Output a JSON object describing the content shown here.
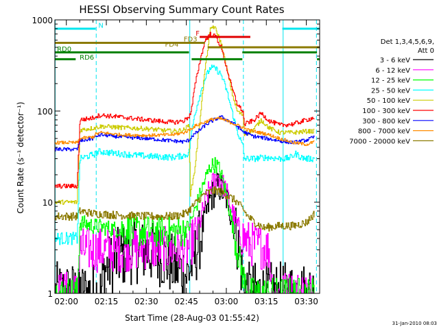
{
  "chart_data": {
    "type": "line",
    "title": "HESSI Observing Summary Count Rates",
    "xlabel": "Start Time (28-Aug-03 01:55:42)",
    "ylabel": "Count Rate (s⁻¹ detector⁻¹)",
    "ylog": true,
    "ylim": [
      1,
      1000
    ],
    "xlim": [
      115.7,
      215
    ],
    "xticks": [
      {
        "value": 120,
        "label": "02:00"
      },
      {
        "value": 135,
        "label": "02:15"
      },
      {
        "value": 150,
        "label": "02:30"
      },
      {
        "value": 165,
        "label": "02:45"
      },
      {
        "value": 180,
        "label": "03:00"
      },
      {
        "value": 195,
        "label": "03:15"
      },
      {
        "value": 210,
        "label": "03:30"
      }
    ],
    "yticks": [
      {
        "value": 1,
        "label": "1"
      },
      {
        "value": 10,
        "label": "10"
      },
      {
        "value": 100,
        "label": "100"
      },
      {
        "value": 1000,
        "label": "1000"
      }
    ],
    "legend": {
      "placement": "right",
      "header": [
        "Det 1,3,4,5,6,9,",
        "Att 0"
      ]
    },
    "flags": [
      {
        "name": "N",
        "color": "#00e5ee",
        "y": 800,
        "segments": [
          [
            115.7,
            131
          ],
          [
            201,
            215
          ]
        ],
        "label_x": 132,
        "label_y": 820
      },
      {
        "name": "F",
        "color": "#e00000",
        "y": 650,
        "segments": [
          [
            170,
            189
          ]
        ],
        "label_x": 168.5,
        "label_y": 670
      },
      {
        "name": "FD3",
        "color": "#8b7a00",
        "y": 560,
        "segments": [
          [
            115.7,
            172
          ]
        ],
        "label_x": 164,
        "label_y": 580
      },
      {
        "name": "FD4",
        "color": "#8b7a00",
        "y": 500,
        "segments": [
          [
            173,
            215
          ]
        ],
        "label_x": 157,
        "label_y": 510
      },
      {
        "name": "RD0",
        "color": "#008000",
        "y": 440,
        "segments": [
          [
            115.7,
            166
          ],
          [
            186,
            214
          ]
        ],
        "label_x": 116.5,
        "label_y": 450
      },
      {
        "name": "RD6",
        "color": "#008000",
        "y": 370,
        "segments": [
          [
            115.7,
            123.5
          ],
          [
            167,
            186
          ],
          [
            214,
            215
          ]
        ],
        "label_x": 125,
        "label_y": 365
      }
    ],
    "vlines": [
      {
        "x": 115.8,
        "style": "solid",
        "color": "#00e5ee"
      },
      {
        "x": 131.2,
        "style": "dashed",
        "color": "#00e5ee"
      },
      {
        "x": 166.3,
        "style": "solid",
        "color": "#00e5ee"
      },
      {
        "x": 186.4,
        "style": "dashed",
        "color": "#00e5ee"
      },
      {
        "x": 201.3,
        "style": "solid",
        "color": "#00e5ee"
      },
      {
        "x": 213.8,
        "style": "dashed",
        "color": "#00e5ee"
      }
    ],
    "series": [
      {
        "name": "3 - 6 keV",
        "color": "#000000",
        "noise": 0.35,
        "x": [
          115.7,
          133,
          134,
          140,
          145,
          150,
          155,
          160,
          165,
          166,
          168,
          170,
          172,
          174,
          176,
          177,
          178,
          180,
          182,
          184,
          186,
          188,
          190,
          194,
          195,
          200,
          205,
          213
        ],
        "y": [
          1,
          1,
          1.8,
          2.5,
          2.8,
          2.9,
          2.6,
          2.0,
          1.6,
          1.8,
          2.5,
          4,
          7,
          11,
          14,
          15,
          14,
          11,
          7,
          3.8,
          1.6,
          1,
          1,
          1,
          1,
          1,
          1,
          1
        ]
      },
      {
        "name": "6 - 12 keV",
        "color": "#ff00ff",
        "noise": 0.25,
        "x": [
          115.7,
          124,
          125,
          130,
          140,
          150,
          155,
          160,
          163,
          166,
          168,
          170,
          172,
          174,
          176,
          177,
          178,
          180,
          182,
          184,
          186,
          188,
          190,
          192,
          194,
          196,
          197,
          198,
          213
        ],
        "y": [
          1,
          1,
          3,
          3,
          3,
          3.2,
          3.1,
          3.0,
          3.0,
          3.2,
          4.2,
          6,
          10,
          15,
          18,
          19,
          17,
          13,
          8,
          5.5,
          4.2,
          3.6,
          3.4,
          3.3,
          3.2,
          3,
          1.2,
          1,
          1
        ]
      },
      {
        "name": "12 - 25 keV",
        "color": "#00ff00",
        "noise": 0.18,
        "x": [
          115.7,
          124,
          125,
          130,
          140,
          150,
          160,
          164,
          166,
          168,
          170,
          172,
          174,
          176,
          177,
          178,
          180,
          182,
          184,
          186,
          188,
          190,
          192,
          213
        ],
        "y": [
          1,
          1,
          6,
          5.5,
          5.0,
          4.8,
          4.8,
          4.8,
          5.5,
          8,
          12,
          18,
          25,
          26,
          24,
          20,
          12,
          6,
          3,
          1.6,
          1,
          1,
          1,
          1
        ]
      },
      {
        "name": "25 - 50 keV",
        "color": "#00ffff",
        "noise": 0.07,
        "x": [
          115.7,
          124,
          125,
          131,
          132,
          140,
          150,
          160,
          165,
          166,
          166.4,
          167,
          168,
          170,
          172,
          174,
          176,
          178,
          180,
          182,
          184,
          186,
          186.4,
          186.5,
          188,
          190,
          195,
          200,
          202,
          204,
          206,
          208,
          210,
          213
        ],
        "y": [
          4,
          4,
          30,
          34,
          36,
          34,
          32,
          31,
          33,
          36,
          45,
          60,
          90,
          150,
          230,
          300,
          290,
          250,
          170,
          100,
          60,
          42,
          40,
          30,
          30,
          30,
          31,
          30,
          30,
          31,
          34,
          31,
          30,
          30
        ]
      },
      {
        "name": "50 - 100 keV",
        "color": "#cccc00",
        "noise": 0.05,
        "x": [
          115.7,
          124,
          125,
          130,
          131,
          133,
          140,
          150,
          160,
          164,
          166,
          166.4,
          167,
          168,
          170,
          172,
          174,
          175,
          176,
          178,
          180,
          182,
          184,
          186,
          186.4,
          186.5,
          188,
          190,
          193,
          196,
          200,
          205,
          210,
          213
        ],
        "y": [
          10,
          10,
          62,
          65,
          66,
          68,
          66,
          64,
          60,
          62,
          70,
          12,
          15,
          22,
          80,
          300,
          800,
          850,
          780,
          550,
          300,
          160,
          100,
          90,
          88,
          55,
          58,
          62,
          80,
          65,
          58,
          58,
          60,
          60
        ]
      },
      {
        "name": "100 - 300 keV",
        "color": "#ff0000",
        "noise": 0.05,
        "x": [
          115.7,
          124,
          125,
          130,
          131,
          133,
          140,
          150,
          160,
          164,
          166,
          166.4,
          167,
          168,
          170,
          172,
          174,
          176,
          178,
          180,
          182,
          184,
          186,
          186.4,
          186.5,
          188,
          190,
          193,
          196,
          200,
          205,
          210,
          213
        ],
        "y": [
          15,
          15,
          80,
          84,
          88,
          90,
          86,
          80,
          75,
          78,
          88,
          92,
          110,
          180,
          350,
          600,
          700,
          650,
          500,
          300,
          180,
          120,
          100,
          95,
          70,
          75,
          78,
          95,
          78,
          70,
          72,
          80,
          85
        ]
      },
      {
        "name": "300 - 800 keV",
        "color": "#0000ff",
        "noise": 0.04,
        "x": [
          115.7,
          124,
          125,
          130,
          131,
          133,
          140,
          150,
          160,
          164,
          166,
          167,
          170,
          172,
          174,
          176,
          178,
          180,
          182,
          184,
          186,
          188,
          190,
          195,
          200,
          205,
          210,
          213
        ],
        "y": [
          38,
          38,
          47,
          50,
          53,
          55,
          52,
          50,
          47,
          46,
          48,
          53,
          62,
          70,
          76,
          82,
          86,
          80,
          75,
          68,
          60,
          56,
          53,
          50,
          47,
          45,
          48,
          52
        ]
      },
      {
        "name": "800 - 7000 keV",
        "color": "#ff8c00",
        "noise": 0.035,
        "x": [
          115.7,
          124,
          125,
          130,
          131,
          133,
          140,
          150,
          160,
          164,
          166,
          168,
          170,
          172,
          174,
          176,
          178,
          180,
          182,
          184,
          186,
          188,
          190,
          195,
          200,
          205,
          210,
          213
        ],
        "y": [
          45,
          45,
          50,
          52,
          56,
          58,
          55,
          54,
          55,
          58,
          62,
          68,
          72,
          76,
          80,
          83,
          82,
          78,
          74,
          70,
          66,
          62,
          60,
          56,
          50,
          45,
          43,
          46
        ]
      },
      {
        "name": "7000 - 20000 keV",
        "color": "#8b7a00",
        "noise": 0.09,
        "x": [
          115.7,
          124,
          125,
          130,
          140,
          150,
          160,
          164,
          166,
          168,
          170,
          172,
          174,
          176,
          178,
          180,
          182,
          184,
          186,
          188,
          190,
          194,
          195,
          200,
          205,
          210,
          213
        ],
        "y": [
          7,
          7,
          8,
          7.5,
          7.2,
          7,
          7,
          7.4,
          8.2,
          9.5,
          11,
          12.5,
          13,
          13.5,
          13,
          12,
          11,
          10,
          8.5,
          7,
          6.2,
          5.2,
          5.3,
          5.5,
          5.5,
          6,
          7.5
        ]
      }
    ]
  },
  "date_stamp": "31-Jan-2010 08:03"
}
